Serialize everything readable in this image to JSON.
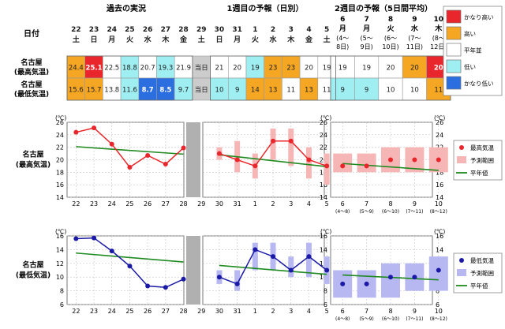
{
  "header": {
    "past_title": "過去の実況",
    "week1_title": "1週目の予報（日別）",
    "week2_title": "2週目の予報（5日間平均）",
    "date_label": "日付"
  },
  "dates": [
    {
      "d": "22",
      "w": "土",
      "wc": "#1a1a1a"
    },
    {
      "d": "23",
      "w": "日",
      "wc": "#1a1a1a"
    },
    {
      "d": "24",
      "w": "月",
      "wc": "#1a1a1a"
    },
    {
      "d": "25",
      "w": "火",
      "wc": "#1a1a1a"
    },
    {
      "d": "26",
      "w": "水",
      "wc": "#1a1a1a"
    },
    {
      "d": "27",
      "w": "木",
      "wc": "#1a1a1a"
    },
    {
      "d": "28",
      "w": "金",
      "wc": "#1a1a1a"
    },
    {
      "d": "29",
      "w": "土",
      "wc": "#1a1a1a"
    },
    {
      "d": "30",
      "w": "日",
      "wc": "#1a1a1a"
    },
    {
      "d": "31",
      "w": "月",
      "wc": "#1a1a1a"
    },
    {
      "d": "1",
      "w": "火",
      "wc": "#1a1a1a"
    },
    {
      "d": "2",
      "w": "水",
      "wc": "#1a1a1a"
    },
    {
      "d": "3",
      "w": "木",
      "wc": "#1a1a1a"
    },
    {
      "d": "4",
      "w": "金",
      "wc": "#1a1a1a"
    },
    {
      "d": "5",
      "w": "土",
      "wc": "#1a1a1a"
    }
  ],
  "week2_dates": [
    {
      "d": "6",
      "w": "月",
      "range": [
        "(4～",
        "8日)"
      ]
    },
    {
      "d": "7",
      "w": "月",
      "range": [
        "(5～",
        "9日)"
      ]
    },
    {
      "d": "8",
      "w": "火",
      "range": [
        "(6～",
        "10日)"
      ]
    },
    {
      "d": "9",
      "w": "水",
      "range": [
        "(7～",
        "11日)"
      ]
    },
    {
      "d": "10",
      "w": "木",
      "range": [
        "(8～",
        "12日)"
      ]
    }
  ],
  "table": {
    "max_label": [
      "名古屋",
      "(最高気温)"
    ],
    "min_label": [
      "名古屋",
      "(最低気温)"
    ],
    "today_label": "当日",
    "max_cells": [
      {
        "v": "24.4",
        "bg": "#f5a623",
        "fg": "#222"
      },
      {
        "v": "25.1",
        "bg": "#e8262b",
        "fg": "#fff"
      },
      {
        "v": "22.5",
        "bg": "#ffffff",
        "fg": "#222"
      },
      {
        "v": "18.8",
        "bg": "#9eeef2",
        "fg": "#222"
      },
      {
        "v": "20.7",
        "bg": "#ffffff",
        "fg": "#222"
      },
      {
        "v": "19.3",
        "bg": "#9eeef2",
        "fg": "#222"
      },
      {
        "v": "21.9",
        "bg": "#ffffff",
        "fg": "#222"
      },
      {
        "v": "当日",
        "bg": "#cccccc",
        "fg": "#222"
      },
      {
        "v": "21",
        "bg": "#ffffff",
        "fg": "#222"
      },
      {
        "v": "20",
        "bg": "#ffffff",
        "fg": "#222"
      },
      {
        "v": "19",
        "bg": "#9eeef2",
        "fg": "#222"
      },
      {
        "v": "23",
        "bg": "#f5a623",
        "fg": "#222"
      },
      {
        "v": "23",
        "bg": "#f5a623",
        "fg": "#222"
      },
      {
        "v": "20",
        "bg": "#ffffff",
        "fg": "#222"
      },
      {
        "v": "19",
        "bg": "#ffffff",
        "fg": "#222"
      }
    ],
    "min_cells": [
      {
        "v": "15.6",
        "bg": "#f5a623",
        "fg": "#222"
      },
      {
        "v": "15.7",
        "bg": "#f5a623",
        "fg": "#222"
      },
      {
        "v": "13.8",
        "bg": "#ffffff",
        "fg": "#222"
      },
      {
        "v": "11.6",
        "bg": "#9eeef2",
        "fg": "#222"
      },
      {
        "v": "8.7",
        "bg": "#2a6ee0",
        "fg": "#fff"
      },
      {
        "v": "8.5",
        "bg": "#2a6ee0",
        "fg": "#fff"
      },
      {
        "v": "9.7",
        "bg": "#9eeef2",
        "fg": "#222"
      },
      {
        "v": "当日",
        "bg": "#cccccc",
        "fg": "#222"
      },
      {
        "v": "10",
        "bg": "#9eeef2",
        "fg": "#222"
      },
      {
        "v": "9",
        "bg": "#9eeef2",
        "fg": "#222"
      },
      {
        "v": "14",
        "bg": "#f5a623",
        "fg": "#222"
      },
      {
        "v": "13",
        "bg": "#f5a623",
        "fg": "#222"
      },
      {
        "v": "11",
        "bg": "#ffffff",
        "fg": "#222"
      },
      {
        "v": "13",
        "bg": "#f5a623",
        "fg": "#222"
      },
      {
        "v": "11",
        "bg": "#ffffff",
        "fg": "#222"
      }
    ],
    "w2_max_cells": [
      {
        "v": "19",
        "bg": "#ffffff",
        "fg": "#222"
      },
      {
        "v": "19",
        "bg": "#ffffff",
        "fg": "#222"
      },
      {
        "v": "20",
        "bg": "#ffffff",
        "fg": "#222"
      },
      {
        "v": "20",
        "bg": "#f5a623",
        "fg": "#222"
      },
      {
        "v": "20",
        "bg": "#e8262b",
        "fg": "#fff"
      }
    ],
    "w2_min_cells": [
      {
        "v": "9",
        "bg": "#9eeef2",
        "fg": "#222"
      },
      {
        "v": "9",
        "bg": "#9eeef2",
        "fg": "#222"
      },
      {
        "v": "10",
        "bg": "#ffffff",
        "fg": "#222"
      },
      {
        "v": "10",
        "bg": "#ffffff",
        "fg": "#222"
      },
      {
        "v": "11",
        "bg": "#f5a623",
        "fg": "#222"
      }
    ]
  },
  "legend_top": [
    {
      "label": "かなり高い",
      "color": "#e8262b"
    },
    {
      "label": "高い",
      "color": "#f5a623"
    },
    {
      "label": "平年並",
      "color": "#ffffff"
    },
    {
      "label": "低い",
      "color": "#9eeef2"
    },
    {
      "label": "かなり低い",
      "color": "#2a6ee0"
    }
  ],
  "chart_data": [
    {
      "type": "line",
      "row_label": [
        "名古屋",
        "(最高気温)"
      ],
      "unit": "(℃)",
      "ylim": [
        14,
        26
      ],
      "yticks": [
        14,
        16,
        18,
        20,
        22,
        24,
        26
      ],
      "x_labels": [
        "22",
        "23",
        "24",
        "25",
        "26",
        "27",
        "28",
        "29",
        "30",
        "31",
        "1",
        "2",
        "3",
        "4",
        "5",
        "6",
        "7",
        "8",
        "9",
        "10"
      ],
      "x_sub_labels": [
        "(4～8)",
        "(5～9)",
        "(6～10)",
        "(7～11)",
        "(8～12)"
      ],
      "observed": [
        24.4,
        25.1,
        22.5,
        18.8,
        20.7,
        19.3,
        21.9
      ],
      "forecast_week1": [
        21,
        20,
        19,
        23,
        23,
        20,
        19
      ],
      "range_week1": [
        [
          20,
          22
        ],
        [
          18,
          23
        ],
        [
          17,
          21
        ],
        [
          20,
          25
        ],
        [
          19,
          25
        ],
        [
          17,
          22
        ],
        [
          16,
          21
        ]
      ],
      "forecast_week2": [
        19,
        19,
        20,
        20,
        20
      ],
      "range_week2": [
        [
          18,
          21
        ],
        [
          18,
          21
        ],
        [
          18,
          22
        ],
        [
          18,
          22
        ],
        [
          18,
          22
        ]
      ],
      "normal_past": [
        22.1,
        20.9
      ],
      "normal_week1": [
        20.8,
        18.9
      ],
      "normal_week2": [
        19.4,
        18.3
      ],
      "colors": {
        "series": "#e8262b",
        "range": "#f7b6b6",
        "normal": "#1f8a1f"
      },
      "legend": [
        "最高気温",
        "予測範囲",
        "平年値"
      ]
    },
    {
      "type": "line",
      "row_label": [
        "名古屋",
        "(最低気温)"
      ],
      "unit": "(℃)",
      "ylim": [
        6,
        16
      ],
      "yticks": [
        6,
        8,
        10,
        12,
        14,
        16
      ],
      "x_labels": [
        "22",
        "23",
        "24",
        "25",
        "26",
        "27",
        "28",
        "29",
        "30",
        "31",
        "1",
        "2",
        "3",
        "4",
        "5",
        "6",
        "7",
        "8",
        "9",
        "10"
      ],
      "x_sub_labels": [
        "(4～8)",
        "(5～9)",
        "(6～10)",
        "(7～11)",
        "(8～12)"
      ],
      "observed": [
        15.6,
        15.7,
        13.8,
        11.6,
        8.7,
        8.5,
        9.7
      ],
      "forecast_week1": [
        10,
        9,
        14,
        13,
        11,
        13,
        11
      ],
      "range_week1": [
        [
          9,
          11
        ],
        [
          8,
          11
        ],
        [
          11,
          15
        ],
        [
          11,
          15
        ],
        [
          10,
          13
        ],
        [
          10,
          15
        ],
        [
          9,
          13
        ]
      ],
      "forecast_week2": [
        9,
        9,
        10,
        10,
        11
      ],
      "range_week2": [
        [
          7,
          11
        ],
        [
          7,
          11
        ],
        [
          7,
          12
        ],
        [
          8,
          12
        ],
        [
          8,
          13
        ]
      ],
      "normal_past": [
        13.5,
        12.2
      ],
      "normal_week1": [
        11.7,
        10.4
      ],
      "normal_week2": [
        10.3,
        9.6
      ],
      "colors": {
        "series": "#1a1aa6",
        "range": "#b7b7f2",
        "normal": "#1f8a1f"
      },
      "legend": [
        "最低気温",
        "予測範囲",
        "平年値"
      ]
    }
  ]
}
